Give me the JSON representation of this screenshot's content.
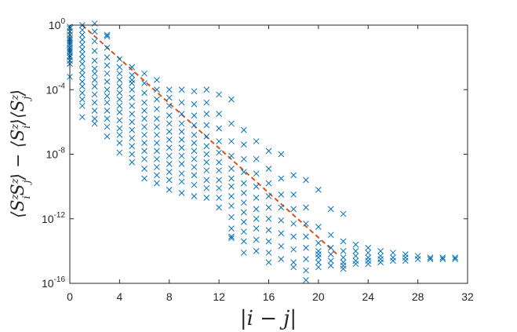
{
  "chart_data": {
    "type": "scatter",
    "title": "",
    "xlabel": "|i − j|",
    "ylabel": "⟨SizSjz⟩ − ⟨Siz⟩⟨Sjz⟩",
    "xlim": [
      0,
      32
    ],
    "ylim_exponent": [
      -16,
      0
    ],
    "yscale": "log",
    "grid": false,
    "legend": "none",
    "x_ticks": [
      0,
      4,
      8,
      12,
      16,
      20,
      24,
      28,
      32
    ],
    "y_ticks": [
      {
        "base": "10",
        "exp": "0"
      },
      {
        "base": "10",
        "exp": "-4"
      },
      {
        "base": "10",
        "exp": "-8"
      },
      {
        "base": "10",
        "exp": "-12"
      },
      {
        "base": "10",
        "exp": "-16"
      }
    ],
    "colors": {
      "markers": "#0072BD",
      "fit": "#D95319",
      "axes": "#262626"
    },
    "marker": "x",
    "fit_line": {
      "style": "dashed",
      "points": [
        [
          1,
          0.0
        ],
        [
          21.5,
          -14.2
        ]
      ]
    },
    "series_points": [
      [
        0,
        -0.2
      ],
      [
        0,
        -0.4
      ],
      [
        0,
        -0.6
      ],
      [
        0,
        -0.8
      ],
      [
        0,
        -1.0
      ],
      [
        0,
        -1.2
      ],
      [
        0,
        -1.4
      ],
      [
        0,
        -1.5
      ],
      [
        0,
        -1.7
      ],
      [
        0,
        -1.9
      ],
      [
        0,
        -2.2
      ],
      [
        0,
        -2.4
      ],
      [
        0,
        -0.1
      ],
      [
        0,
        -0.9
      ],
      [
        0,
        -1.1
      ],
      [
        0,
        -1.6
      ],
      [
        0,
        -2.0
      ],
      [
        0,
        -3.2
      ],
      [
        1,
        0.0
      ],
      [
        1,
        -0.3
      ],
      [
        1,
        -0.6
      ],
      [
        1,
        -0.9
      ],
      [
        1,
        -1.2
      ],
      [
        1,
        -1.5
      ],
      [
        1,
        -1.8
      ],
      [
        1,
        -2.1
      ],
      [
        1,
        -2.4
      ],
      [
        1,
        -2.8
      ],
      [
        1,
        -3.1
      ],
      [
        1,
        -3.5
      ],
      [
        1,
        -3.8
      ],
      [
        1,
        -4.2
      ],
      [
        1,
        -4.6
      ],
      [
        1,
        -5.0
      ],
      [
        1,
        -5.7
      ],
      [
        2,
        0.1
      ],
      [
        2,
        -0.4
      ],
      [
        2,
        -1.0
      ],
      [
        2,
        -1.6
      ],
      [
        2,
        -2.2
      ],
      [
        2,
        -2.7
      ],
      [
        2,
        -3.0
      ],
      [
        2,
        -3.4
      ],
      [
        2,
        -3.8
      ],
      [
        2,
        -4.3
      ],
      [
        2,
        -4.8
      ],
      [
        2,
        -5.3
      ],
      [
        2,
        -5.8
      ],
      [
        2,
        -6.1
      ],
      [
        3,
        -0.7
      ],
      [
        3,
        -1.4
      ],
      [
        3,
        -2.0
      ],
      [
        3,
        -2.5
      ],
      [
        3,
        -3.0
      ],
      [
        3,
        -3.5
      ],
      [
        3,
        -4.0
      ],
      [
        3,
        -4.4
      ],
      [
        3,
        -4.8
      ],
      [
        3,
        -5.3
      ],
      [
        3,
        -5.8
      ],
      [
        3,
        -6.3
      ],
      [
        3,
        -6.9
      ],
      [
        3,
        -0.6
      ],
      [
        4,
        -2.1
      ],
      [
        4,
        -2.6
      ],
      [
        4,
        -3.0
      ],
      [
        4,
        -3.4
      ],
      [
        4,
        -3.8
      ],
      [
        4,
        -4.2
      ],
      [
        4,
        -4.6
      ],
      [
        4,
        -5.0
      ],
      [
        4,
        -5.4
      ],
      [
        4,
        -5.9
      ],
      [
        4,
        -6.4
      ],
      [
        4,
        -6.8
      ],
      [
        4,
        -7.3
      ],
      [
        4,
        -7.9
      ],
      [
        5,
        -2.6
      ],
      [
        5,
        -3.1
      ],
      [
        5,
        -3.6
      ],
      [
        5,
        -4.0
      ],
      [
        5,
        -4.5
      ],
      [
        5,
        -5.0
      ],
      [
        5,
        -5.5
      ],
      [
        5,
        -6.0
      ],
      [
        5,
        -6.5
      ],
      [
        5,
        -7.0
      ],
      [
        5,
        -7.5
      ],
      [
        5,
        -8.0
      ],
      [
        5,
        -8.5
      ],
      [
        5,
        -3.4
      ],
      [
        6,
        -3.0
      ],
      [
        6,
        -3.6
      ],
      [
        6,
        -4.2
      ],
      [
        6,
        -4.8
      ],
      [
        6,
        -5.3
      ],
      [
        6,
        -5.8
      ],
      [
        6,
        -6.3
      ],
      [
        6,
        -6.8
      ],
      [
        6,
        -7.3
      ],
      [
        6,
        -7.8
      ],
      [
        6,
        -8.3
      ],
      [
        6,
        -8.9
      ],
      [
        6,
        -9.5
      ],
      [
        7,
        -3.4
      ],
      [
        7,
        -4.0
      ],
      [
        7,
        -4.6
      ],
      [
        7,
        -5.2
      ],
      [
        7,
        -5.8
      ],
      [
        7,
        -6.3
      ],
      [
        7,
        -6.8
      ],
      [
        7,
        -7.3
      ],
      [
        7,
        -7.8
      ],
      [
        7,
        -8.3
      ],
      [
        7,
        -8.8
      ],
      [
        7,
        -9.3
      ],
      [
        7,
        -9.8
      ],
      [
        8,
        -4.0
      ],
      [
        8,
        -4.5
      ],
      [
        8,
        -5.0
      ],
      [
        8,
        -5.6
      ],
      [
        8,
        -6.1
      ],
      [
        8,
        -6.6
      ],
      [
        8,
        -7.1
      ],
      [
        8,
        -7.6
      ],
      [
        8,
        -8.1
      ],
      [
        8,
        -8.6
      ],
      [
        8,
        -9.1
      ],
      [
        8,
        -9.6
      ],
      [
        8,
        -10.2
      ],
      [
        9,
        -4.0
      ],
      [
        9,
        -4.8
      ],
      [
        9,
        -5.5
      ],
      [
        9,
        -6.1
      ],
      [
        9,
        -6.6
      ],
      [
        9,
        -7.1
      ],
      [
        9,
        -7.6
      ],
      [
        9,
        -8.1
      ],
      [
        9,
        -8.6
      ],
      [
        9,
        -9.2
      ],
      [
        9,
        -9.7
      ],
      [
        9,
        -10.4
      ],
      [
        10,
        -4.1
      ],
      [
        10,
        -4.9
      ],
      [
        10,
        -5.6
      ],
      [
        10,
        -6.2
      ],
      [
        10,
        -6.8
      ],
      [
        10,
        -7.3
      ],
      [
        10,
        -7.8
      ],
      [
        10,
        -8.3
      ],
      [
        10,
        -8.8
      ],
      [
        10,
        -9.3
      ],
      [
        10,
        -9.9
      ],
      [
        10,
        -10.6
      ],
      [
        11,
        -4.0
      ],
      [
        11,
        -4.8
      ],
      [
        11,
        -5.5
      ],
      [
        11,
        -6.2
      ],
      [
        11,
        -6.9
      ],
      [
        11,
        -7.5
      ],
      [
        11,
        -8.0
      ],
      [
        11,
        -8.5
      ],
      [
        11,
        -9.0
      ],
      [
        11,
        -9.6
      ],
      [
        11,
        -10.1
      ],
      [
        11,
        -10.7
      ],
      [
        12,
        -4.3
      ],
      [
        12,
        -5.5
      ],
      [
        12,
        -6.4
      ],
      [
        12,
        -7.2
      ],
      [
        12,
        -7.9
      ],
      [
        12,
        -8.5
      ],
      [
        12,
        -9.0
      ],
      [
        12,
        -9.6
      ],
      [
        12,
        -10.1
      ],
      [
        12,
        -10.7
      ],
      [
        12,
        -11.3
      ],
      [
        13,
        -4.6
      ],
      [
        13,
        -6.1
      ],
      [
        13,
        -7.2
      ],
      [
        13,
        -8.1
      ],
      [
        13,
        -8.9
      ],
      [
        13,
        -9.5
      ],
      [
        13,
        -10.0
      ],
      [
        13,
        -10.6
      ],
      [
        13,
        -11.2
      ],
      [
        13,
        -11.9
      ],
      [
        13,
        -12.6
      ],
      [
        13,
        -13.1
      ],
      [
        13,
        -13.2
      ],
      [
        14,
        -6.5
      ],
      [
        14,
        -7.4
      ],
      [
        14,
        -8.3
      ],
      [
        14,
        -9.1
      ],
      [
        14,
        -9.8
      ],
      [
        14,
        -10.4
      ],
      [
        14,
        -11.0
      ],
      [
        14,
        -11.6
      ],
      [
        14,
        -12.2
      ],
      [
        14,
        -12.8
      ],
      [
        14,
        -13.4
      ],
      [
        14,
        -14.1
      ],
      [
        15,
        -7.2
      ],
      [
        15,
        -8.3
      ],
      [
        15,
        -9.2
      ],
      [
        15,
        -10.0
      ],
      [
        15,
        -10.7
      ],
      [
        15,
        -11.4
      ],
      [
        15,
        -12.0
      ],
      [
        15,
        -12.6
      ],
      [
        15,
        -13.3
      ],
      [
        15,
        -14.0
      ],
      [
        16,
        -7.8
      ],
      [
        16,
        -8.9
      ],
      [
        16,
        -9.8
      ],
      [
        16,
        -10.6
      ],
      [
        16,
        -11.3
      ],
      [
        16,
        -12.0
      ],
      [
        16,
        -12.7
      ],
      [
        16,
        -13.4
      ],
      [
        16,
        -14.1
      ],
      [
        16,
        -14.7
      ],
      [
        17,
        -8.0
      ],
      [
        17,
        -9.5
      ],
      [
        17,
        -10.5
      ],
      [
        17,
        -11.3
      ],
      [
        17,
        -12.1
      ],
      [
        17,
        -12.9
      ],
      [
        17,
        -13.7
      ],
      [
        17,
        -14.5
      ],
      [
        18,
        -9.3
      ],
      [
        18,
        -10.5
      ],
      [
        18,
        -11.4
      ],
      [
        18,
        -12.3
      ],
      [
        18,
        -13.1
      ],
      [
        18,
        -13.9
      ],
      [
        18,
        -14.7
      ],
      [
        18,
        -15.0
      ],
      [
        19,
        -9.6
      ],
      [
        19,
        -11.3
      ],
      [
        19,
        -12.3
      ],
      [
        19,
        -13.1
      ],
      [
        19,
        -13.8
      ],
      [
        19,
        -14.5
      ],
      [
        19,
        -15.2
      ],
      [
        19,
        -15.8
      ],
      [
        20,
        -10.2
      ],
      [
        20,
        -12.5
      ],
      [
        20,
        -13.5
      ],
      [
        20,
        -14.0
      ],
      [
        20,
        -14.4
      ],
      [
        20,
        -14.7
      ],
      [
        20,
        -15.0
      ],
      [
        20,
        -14.2
      ],
      [
        21,
        -11.4
      ],
      [
        21,
        -13.0
      ],
      [
        21,
        -13.8
      ],
      [
        21,
        -14.2
      ],
      [
        21,
        -14.6
      ],
      [
        21,
        -14.9
      ],
      [
        22,
        -11.7
      ],
      [
        22,
        -13.4
      ],
      [
        22,
        -14.0
      ],
      [
        22,
        -14.4
      ],
      [
        22,
        -14.7
      ],
      [
        22,
        -14.9
      ],
      [
        22,
        -15.1
      ],
      [
        23,
        -13.6
      ],
      [
        23,
        -14.0
      ],
      [
        23,
        -14.3
      ],
      [
        23,
        -14.6
      ],
      [
        23,
        -14.8
      ],
      [
        24,
        -13.8
      ],
      [
        24,
        -14.1
      ],
      [
        24,
        -14.4
      ],
      [
        24,
        -14.6
      ],
      [
        24,
        -14.8
      ],
      [
        25,
        -14.0
      ],
      [
        25,
        -14.3
      ],
      [
        25,
        -14.5
      ],
      [
        25,
        -14.7
      ],
      [
        26,
        -14.1
      ],
      [
        26,
        -14.4
      ],
      [
        26,
        -14.6
      ],
      [
        27,
        -14.2
      ],
      [
        27,
        -14.4
      ],
      [
        27,
        -14.6
      ],
      [
        28,
        -14.3
      ],
      [
        28,
        -14.5
      ],
      [
        29,
        -14.4
      ],
      [
        29,
        -14.5
      ],
      [
        30,
        -14.4
      ],
      [
        30,
        -14.5
      ],
      [
        31,
        -14.4
      ],
      [
        31,
        -14.5
      ]
    ]
  }
}
